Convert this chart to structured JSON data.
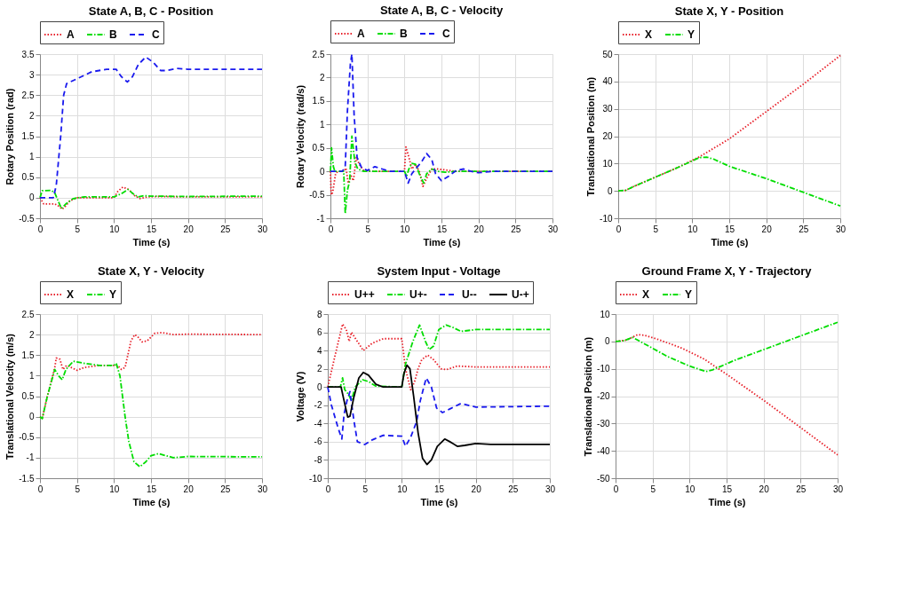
{
  "chart_data": [
    {
      "type": "line",
      "title": "State A, B, C - Position",
      "xlabel": "Time (s)",
      "ylabel": "Rotary Position (rad)",
      "xlim": [
        0,
        30
      ],
      "xticks": [
        0,
        5,
        10,
        15,
        20,
        25,
        30
      ],
      "ylim": [
        -0.5,
        3.5
      ],
      "yticks": [
        -0.5,
        0,
        0.5,
        1,
        1.5,
        2,
        2.5,
        3,
        3.5
      ],
      "grid": true,
      "legend": "top",
      "series": [
        {
          "name": "A",
          "color": "#e8202a",
          "line_style": "dotted",
          "x": [
            0,
            0.5,
            2,
            2.5,
            3,
            3.5,
            4,
            5,
            10,
            10.5,
            11.2,
            12,
            12.8,
            13.5,
            14.5,
            16,
            20,
            30
          ],
          "values": [
            0,
            -0.15,
            -0.15,
            -0.2,
            -0.28,
            -0.2,
            -0.08,
            0,
            0,
            0.15,
            0.26,
            0.2,
            0.05,
            -0.02,
            0.02,
            0.03,
            0.02,
            0.02
          ]
        },
        {
          "name": "B",
          "color": "#00dd00",
          "line_style": "dashdot",
          "x": [
            0,
            0.3,
            1.5,
            2,
            2.5,
            2.9,
            3.5,
            4.5,
            6,
            10,
            11,
            11.9,
            12.7,
            13.3,
            14,
            15,
            20,
            30
          ],
          "values": [
            0,
            0.17,
            0.18,
            0.12,
            -0.1,
            -0.26,
            -0.15,
            -0.02,
            0.02,
            0.02,
            0.1,
            0.2,
            0.08,
            0.02,
            0.05,
            0.04,
            0.03,
            0.04
          ]
        },
        {
          "name": "C",
          "color": "#1a1aee",
          "line_style": "dashed",
          "x": [
            0,
            1.8,
            2.2,
            2.8,
            3.2,
            3.6,
            5,
            7,
            9,
            10.3,
            11,
            11.8,
            12.5,
            13.3,
            14.3,
            15.3,
            16.3,
            17.2,
            18.5,
            20,
            30
          ],
          "values": [
            0,
            0,
            0.3,
            1.5,
            2.5,
            2.78,
            2.9,
            3.07,
            3.13,
            3.13,
            2.95,
            2.82,
            2.95,
            3.25,
            3.43,
            3.3,
            3.1,
            3.1,
            3.15,
            3.13,
            3.13
          ]
        }
      ]
    },
    {
      "type": "line",
      "title": "State A, B, C - Velocity",
      "xlabel": "Time (s)",
      "ylabel": "Rotary Velocity (rad/s)",
      "xlim": [
        0,
        30
      ],
      "xticks": [
        0,
        5,
        10,
        15,
        20,
        25,
        30
      ],
      "ylim": [
        -1,
        2.5
      ],
      "yticks": [
        -1,
        -0.5,
        0,
        0.5,
        1,
        1.5,
        2,
        2.5
      ],
      "grid": true,
      "legend": "top",
      "series": [
        {
          "name": "A",
          "color": "#e8202a",
          "line_style": "dotted",
          "x": [
            0,
            0.1,
            0.3,
            0.7,
            1,
            1.8,
            2.1,
            2.4,
            2.8,
            3.1,
            3.5,
            3.9,
            4.5,
            6,
            10,
            10.2,
            10.6,
            11,
            11.5,
            12,
            12.5,
            13,
            13.7,
            14.5,
            16,
            17,
            20,
            30
          ],
          "values": [
            0,
            -0.5,
            -0.45,
            -0.05,
            0,
            0,
            0.07,
            -0.25,
            -0.1,
            -0.2,
            0.3,
            0.15,
            0.02,
            0,
            0,
            0.52,
            0.3,
            0.05,
            0.15,
            0,
            -0.32,
            -0.15,
            0.05,
            0.05,
            0.02,
            0,
            0,
            0
          ]
        },
        {
          "name": "B",
          "color": "#00dd00",
          "line_style": "dashdot",
          "x": [
            0,
            0.15,
            0.4,
            0.6,
            1.8,
            2,
            2.3,
            2.6,
            2.9,
            3.3,
            3.7,
            4.5,
            10,
            10.3,
            10.6,
            11,
            11.5,
            12,
            12.6,
            13,
            13.7,
            14.5,
            15.5,
            17,
            30
          ],
          "values": [
            0,
            0.5,
            0.1,
            0,
            0,
            -0.9,
            -0.4,
            -0.2,
            0.75,
            0.2,
            0.05,
            0,
            0,
            -0.1,
            0.05,
            0.17,
            0.15,
            -0.05,
            -0.25,
            -0.05,
            0.05,
            0,
            -0.02,
            0,
            0
          ]
        },
        {
          "name": "C",
          "color": "#1a1aee",
          "line_style": "dashed",
          "x": [
            0,
            1.6,
            2,
            2.3,
            2.7,
            2.9,
            3.2,
            3.6,
            4.2,
            5,
            6,
            7,
            8,
            10,
            10.5,
            11,
            11.5,
            12.3,
            13,
            13.7,
            14.2,
            15,
            16,
            17,
            18,
            19,
            20,
            22,
            30
          ],
          "values": [
            0,
            0,
            0.1,
            1.3,
            2.3,
            2.5,
            1.2,
            0.3,
            0.08,
            0.02,
            0.1,
            0.05,
            0,
            0,
            -0.25,
            -0.05,
            0.05,
            0.2,
            0.38,
            0.25,
            -0.05,
            -0.2,
            -0.1,
            0.02,
            0.05,
            0,
            -0.03,
            0,
            0
          ]
        }
      ]
    },
    {
      "type": "line",
      "title": "State X, Y - Position",
      "xlabel": "Time (s)",
      "ylabel": "Translational Position (m)",
      "xlim": [
        0,
        30
      ],
      "xticks": [
        0,
        5,
        10,
        15,
        20,
        25,
        30
      ],
      "ylim": [
        -10,
        50
      ],
      "yticks": [
        -10,
        0,
        10,
        20,
        30,
        40,
        50
      ],
      "grid": true,
      "legend": "top",
      "series": [
        {
          "name": "X",
          "color": "#e8202a",
          "line_style": "dotted",
          "x": [
            0,
            1,
            2,
            5,
            8,
            11,
            15,
            20,
            25,
            30
          ],
          "values": [
            0,
            0.2,
            1.5,
            5,
            8.5,
            12.5,
            19,
            29,
            39,
            49.5
          ]
        },
        {
          "name": "Y",
          "color": "#00dd00",
          "line_style": "dashdot",
          "x": [
            0,
            1,
            2,
            5,
            8,
            11,
            12,
            13,
            15,
            20,
            25,
            30
          ],
          "values": [
            0,
            0.2,
            1.5,
            5,
            8.5,
            12.2,
            12.3,
            11.5,
            9,
            4.5,
            -0.5,
            -5.5
          ]
        }
      ]
    },
    {
      "type": "line",
      "title": "State X, Y - Velocity",
      "xlabel": "Time (s)",
      "ylabel": "Translational Velocity (m/s)",
      "xlim": [
        0,
        30
      ],
      "xticks": [
        0,
        5,
        10,
        15,
        20,
        25,
        30
      ],
      "ylim": [
        -1.5,
        2.5
      ],
      "yticks": [
        -1.5,
        -1,
        -0.5,
        0,
        0.5,
        1,
        1.5,
        2,
        2.5
      ],
      "grid": true,
      "legend": "top",
      "series": [
        {
          "name": "X",
          "color": "#e8202a",
          "line_style": "dotted",
          "x": [
            0,
            0.3,
            1,
            2,
            2.2,
            2.7,
            3.1,
            3.6,
            4.2,
            5,
            6,
            8,
            10.5,
            11,
            11.5,
            12.3,
            12.8,
            13.2,
            13.8,
            14.5,
            15.5,
            16.5,
            18,
            20,
            30
          ],
          "values": [
            0,
            -0.05,
            0.5,
            1.2,
            1.43,
            1.4,
            1.15,
            1.25,
            1.2,
            1.13,
            1.2,
            1.25,
            1.25,
            1.15,
            1.2,
            1.85,
            2,
            1.95,
            1.82,
            1.85,
            2.03,
            2.05,
            2,
            2.01,
            2
          ]
        },
        {
          "name": "Y",
          "color": "#00dd00",
          "line_style": "dashdot",
          "x": [
            0,
            0.3,
            1,
            2,
            2.5,
            3,
            3.5,
            4.5,
            6,
            8,
            10,
            10.3,
            10.8,
            11.5,
            12,
            12.7,
            13.5,
            14.3,
            15,
            16,
            17,
            18,
            20,
            30
          ],
          "values": [
            0,
            -0.05,
            0.5,
            1.15,
            1,
            0.9,
            1.15,
            1.35,
            1.3,
            1.25,
            1.25,
            1.3,
            1,
            0,
            -0.6,
            -1.1,
            -1.22,
            -1.1,
            -0.95,
            -0.9,
            -0.95,
            -1,
            -0.97,
            -0.98
          ]
        }
      ]
    },
    {
      "type": "line",
      "title": "System Input - Voltage",
      "xlabel": "Time (s)",
      "ylabel": "Voltage (V)",
      "xlim": [
        0,
        30
      ],
      "xticks": [
        0,
        5,
        10,
        15,
        20,
        25,
        30
      ],
      "ylim": [
        -10,
        8
      ],
      "yticks": [
        -10,
        -8,
        -6,
        -4,
        -2,
        0,
        2,
        4,
        6,
        8
      ],
      "grid": true,
      "legend": "top",
      "series": [
        {
          "name": "U++",
          "color": "#e8202a",
          "line_style": "dotted",
          "x": [
            0,
            1,
            2,
            2.5,
            2.9,
            3.2,
            3.6,
            4.8,
            6,
            7.5,
            10,
            10.5,
            11.2,
            11.7,
            12.2,
            12.7,
            13.5,
            14.3,
            15.3,
            16,
            17.5,
            20,
            30
          ],
          "values": [
            0,
            3.5,
            6.9,
            6.3,
            5,
            6,
            5.5,
            4,
            4.8,
            5.3,
            5.3,
            2,
            -0.3,
            0.5,
            2,
            3,
            3.5,
            3,
            2,
            1.9,
            2.3,
            2.2,
            2.2
          ]
        },
        {
          "name": "U+-",
          "color": "#00dd00",
          "line_style": "dashdot",
          "x": [
            0,
            1.7,
            2,
            2.3,
            2.8,
            3.2,
            3.7,
            4.7,
            5.5,
            6.5,
            10,
            10.5,
            11.5,
            12.4,
            13.2,
            13.7,
            14.3,
            15,
            16,
            17,
            18,
            20,
            30
          ],
          "values": [
            0,
            0,
            1,
            -0.3,
            -0.8,
            -1.5,
            0,
            0.8,
            0.6,
            0.1,
            0,
            2.5,
            5,
            6.8,
            5,
            4.1,
            4.5,
            6.3,
            6.8,
            6.5,
            6.1,
            6.3,
            6.3
          ]
        },
        {
          "name": "U--",
          "color": "#1a1aee",
          "line_style": "dashed",
          "x": [
            0,
            0.5,
            1.4,
            1.9,
            2.2,
            2.6,
            3,
            3.5,
            4,
            5,
            6,
            7.5,
            10,
            10.5,
            11.2,
            12,
            12.5,
            13.3,
            14,
            14.7,
            15.5,
            16.5,
            18,
            20,
            30
          ],
          "values": [
            0,
            -2,
            -4.5,
            -5.7,
            -3,
            -1.5,
            -0.5,
            -3.5,
            -6,
            -6.3,
            -5.8,
            -5.3,
            -5.4,
            -6.5,
            -5.5,
            -3.8,
            -1.5,
            1,
            0,
            -2.3,
            -2.8,
            -2.4,
            -1.8,
            -2.2,
            -2.1
          ]
        },
        {
          "name": "U-+",
          "color": "#000000",
          "line_style": "solid",
          "x": [
            0,
            1.8,
            2.2,
            2.7,
            3,
            3.5,
            4.2,
            4.8,
            5.5,
            6.5,
            7.5,
            10,
            10.3,
            10.7,
            11.1,
            11.6,
            12.2,
            12.8,
            13.4,
            14,
            14.8,
            15.8,
            16.5,
            17.5,
            18.5,
            20,
            22,
            30
          ],
          "values": [
            0,
            0,
            -1.5,
            -3.3,
            -3.2,
            -1.2,
            1,
            1.6,
            1.3,
            0.3,
            0,
            0,
            1.5,
            2.4,
            2,
            -1,
            -5,
            -7.8,
            -8.5,
            -8,
            -6.5,
            -5.7,
            -6,
            -6.5,
            -6.4,
            -6.2,
            -6.3,
            -6.3
          ]
        }
      ]
    },
    {
      "type": "line",
      "title": "Ground Frame X, Y - Trajectory",
      "xlabel": "Time (s)",
      "ylabel": "Translational Position (m)",
      "xlim": [
        0,
        30
      ],
      "xticks": [
        0,
        5,
        10,
        15,
        20,
        25,
        30
      ],
      "ylim": [
        -50,
        10
      ],
      "yticks": [
        -50,
        -40,
        -30,
        -20,
        -10,
        0,
        10
      ],
      "grid": true,
      "legend": "top",
      "series": [
        {
          "name": "X",
          "color": "#e8202a",
          "line_style": "dotted",
          "x": [
            0,
            1.5,
            3,
            4,
            6,
            9,
            12,
            15,
            20,
            25,
            30
          ],
          "values": [
            0,
            0.5,
            2.5,
            2.2,
            0.5,
            -2.5,
            -6.5,
            -12,
            -21.5,
            -31.5,
            -41.5
          ]
        },
        {
          "name": "Y",
          "color": "#00dd00",
          "line_style": "dashdot",
          "x": [
            0,
            1.2,
            2.3,
            4,
            7,
            10,
            12.2,
            13,
            14.3,
            16,
            20,
            25,
            30
          ],
          "values": [
            0,
            0.3,
            1.5,
            -1,
            -5.5,
            -9,
            -11,
            -10.5,
            -9,
            -7,
            -3,
            2,
            7
          ]
        }
      ]
    }
  ]
}
